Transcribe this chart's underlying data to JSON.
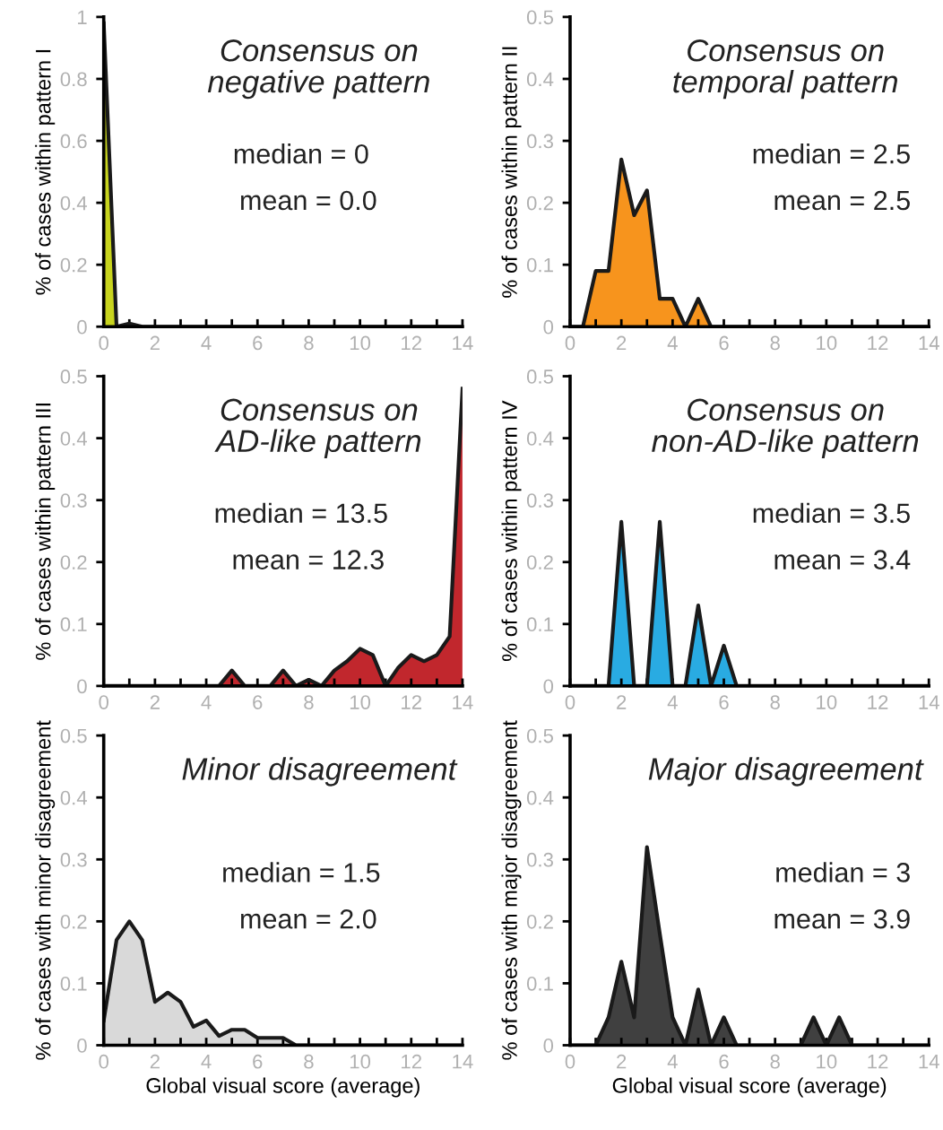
{
  "chart_data": [
    {
      "type": "area",
      "title": "Consensus on\nnegative pattern",
      "ylabel": "% of cases within pattern I",
      "annotations": [
        "median = 0",
        "mean = 0.0"
      ],
      "x": [
        0,
        0.5,
        1,
        1.5,
        2,
        2.5,
        3,
        3.5,
        4,
        4.5,
        5,
        5.5,
        6,
        6.5,
        7,
        7.5,
        8,
        8.5,
        9,
        9.5,
        10,
        10.5,
        11,
        11.5,
        12,
        12.5,
        13,
        13.5,
        14
      ],
      "series": [
        {
          "color": "#c8d41e",
          "values": [
            0.98,
            0,
            0.01,
            0,
            0,
            0,
            0,
            0,
            0,
            0,
            0,
            0,
            0,
            0,
            0,
            0,
            0,
            0,
            0,
            0,
            0,
            0,
            0,
            0,
            0,
            0,
            0,
            0,
            0
          ]
        }
      ],
      "xlim": [
        0,
        14
      ],
      "ylim": [
        0,
        1
      ],
      "xticks": [
        0,
        {
          "value": 1,
          "label": null
        },
        2,
        {
          "value": 3,
          "label": null
        },
        4,
        {
          "value": 5,
          "label": null
        },
        6,
        {
          "value": 7,
          "label": null
        },
        8,
        {
          "value": 9,
          "label": null
        },
        10,
        {
          "value": 11,
          "label": null
        },
        12,
        {
          "value": 13,
          "label": null
        },
        14
      ],
      "yticks": [
        0,
        0.2,
        0.4,
        0.6,
        0.8,
        1
      ]
    },
    {
      "type": "area",
      "title": "Consensus on\ntemporal pattern",
      "ylabel": "% of cases within pattern II",
      "annotations": [
        "median = 2.5",
        "mean = 2.5"
      ],
      "x": [
        0,
        0.5,
        1,
        1.5,
        2,
        2.5,
        3,
        3.5,
        4,
        4.5,
        5,
        5.5,
        6,
        6.5,
        7,
        7.5,
        8,
        8.5,
        9,
        9.5,
        10,
        10.5,
        11,
        11.5,
        12,
        12.5,
        13,
        13.5,
        14
      ],
      "series": [
        {
          "color": "#f7941d",
          "values": [
            0,
            0,
            0.09,
            0.09,
            0.27,
            0.18,
            0.22,
            0.045,
            0.045,
            0,
            0.045,
            0,
            0,
            0,
            0,
            0,
            0,
            0,
            0,
            0,
            0,
            0,
            0,
            0,
            0,
            0,
            0,
            0,
            0
          ]
        }
      ],
      "xlim": [
        0,
        14
      ],
      "ylim": [
        0,
        0.5
      ],
      "xticks": [
        0,
        {
          "value": 1,
          "label": null
        },
        2,
        {
          "value": 3,
          "label": null
        },
        4,
        {
          "value": 5,
          "label": null
        },
        6,
        {
          "value": 7,
          "label": null
        },
        8,
        {
          "value": 9,
          "label": null
        },
        10,
        {
          "value": 11,
          "label": null
        },
        12,
        {
          "value": 13,
          "label": null
        },
        14
      ],
      "yticks": [
        0,
        0.1,
        0.2,
        0.3,
        0.4,
        0.5
      ]
    },
    {
      "type": "area",
      "title": "Consensus on\nAD-like pattern",
      "ylabel": "% of cases within pattern III",
      "annotations": [
        "median = 13.5",
        "mean = 12.3"
      ],
      "x": [
        0,
        0.5,
        1,
        1.5,
        2,
        2.5,
        3,
        3.5,
        4,
        4.5,
        5,
        5.5,
        6,
        6.5,
        7,
        7.5,
        8,
        8.5,
        9,
        9.5,
        10,
        10.5,
        11,
        11.5,
        12,
        12.5,
        13,
        13.5,
        14
      ],
      "series": [
        {
          "color": "#c1272d",
          "values": [
            0,
            0,
            0,
            0,
            0,
            0,
            0,
            0,
            0,
            0,
            0.025,
            0,
            0,
            0,
            0.025,
            0,
            0.01,
            0,
            0.025,
            0.04,
            0.06,
            0.05,
            0,
            0.03,
            0.05,
            0.04,
            0.05,
            0.08,
            0.48
          ]
        }
      ],
      "xlim": [
        0,
        14
      ],
      "ylim": [
        0,
        0.5
      ],
      "xticks": [
        0,
        {
          "value": 1,
          "label": null
        },
        2,
        {
          "value": 3,
          "label": null
        },
        4,
        {
          "value": 5,
          "label": null
        },
        6,
        {
          "value": 7,
          "label": null
        },
        8,
        {
          "value": 9,
          "label": null
        },
        10,
        {
          "value": 11,
          "label": null
        },
        12,
        {
          "value": 13,
          "label": null
        },
        14
      ],
      "yticks": [
        0,
        0.1,
        0.2,
        0.3,
        0.4,
        0.5
      ]
    },
    {
      "type": "area",
      "title": "Consensus on\nnon-AD-like pattern",
      "ylabel": "% of cases within pattern IV",
      "annotations": [
        "median = 3.5",
        "mean = 3.4"
      ],
      "x": [
        0,
        0.5,
        1,
        1.5,
        2,
        2.5,
        3,
        3.5,
        4,
        4.5,
        5,
        5.5,
        6,
        6.5,
        7,
        7.5,
        8,
        8.5,
        9,
        9.5,
        10,
        10.5,
        11,
        11.5,
        12,
        12.5,
        13,
        13.5,
        14
      ],
      "series": [
        {
          "color": "#29abe2",
          "values": [
            0,
            0,
            0,
            0,
            0.265,
            0,
            0,
            0.265,
            0,
            0,
            0.13,
            0,
            0.065,
            0,
            0,
            0,
            0,
            0,
            0,
            0,
            0,
            0,
            0,
            0,
            0,
            0,
            0,
            0,
            0
          ]
        }
      ],
      "xlim": [
        0,
        14
      ],
      "ylim": [
        0,
        0.5
      ],
      "xticks": [
        0,
        {
          "value": 1,
          "label": null
        },
        2,
        {
          "value": 3,
          "label": null
        },
        4,
        {
          "value": 5,
          "label": null
        },
        6,
        {
          "value": 7,
          "label": null
        },
        8,
        {
          "value": 9,
          "label": null
        },
        10,
        {
          "value": 11,
          "label": null
        },
        12,
        {
          "value": 13,
          "label": null
        },
        14
      ],
      "yticks": [
        0,
        0.1,
        0.2,
        0.3,
        0.4,
        0.5
      ]
    },
    {
      "type": "area",
      "title": "Minor disagreement",
      "xlabel": "Global visual score (average)",
      "ylabel": "% of cases with minor disagreement",
      "annotations": [
        "median = 1.5",
        "mean = 2.0"
      ],
      "x": [
        0,
        0.5,
        1,
        1.5,
        2,
        2.5,
        3,
        3.5,
        4,
        4.5,
        5,
        5.5,
        6,
        6.5,
        7,
        7.5,
        8,
        8.5,
        9,
        9.5,
        10,
        10.5,
        11,
        11.5,
        12,
        12.5,
        13,
        13.5,
        14
      ],
      "series": [
        {
          "color": "#d9d9d9",
          "values": [
            0.04,
            0.17,
            0.2,
            0.17,
            0.07,
            0.085,
            0.07,
            0.03,
            0.04,
            0.015,
            0.025,
            0.025,
            0.012,
            0.012,
            0.012,
            0,
            0,
            0,
            0,
            0,
            0,
            0,
            0,
            0,
            0,
            0,
            0,
            0,
            0
          ]
        }
      ],
      "xlim": [
        0,
        14
      ],
      "ylim": [
        0,
        0.5
      ],
      "xticks": [
        0,
        {
          "value": 1,
          "label": null
        },
        2,
        {
          "value": 3,
          "label": null
        },
        4,
        {
          "value": 5,
          "label": null
        },
        6,
        {
          "value": 7,
          "label": null
        },
        8,
        {
          "value": 9,
          "label": null
        },
        10,
        {
          "value": 11,
          "label": null
        },
        12,
        {
          "value": 13,
          "label": null
        },
        14
      ],
      "yticks": [
        0,
        0.1,
        0.2,
        0.3,
        0.4,
        0.5
      ]
    },
    {
      "type": "area",
      "title": "Major disagreement",
      "xlabel": "Global visual score (average)",
      "ylabel": "% of cases with major disagreement",
      "annotations": [
        "median = 3",
        "mean = 3.9"
      ],
      "x": [
        0,
        0.5,
        1,
        1.5,
        2,
        2.5,
        3,
        3.5,
        4,
        4.5,
        5,
        5.5,
        6,
        6.5,
        7,
        7.5,
        8,
        8.5,
        9,
        9.5,
        10,
        10.5,
        11,
        11.5,
        12,
        12.5,
        13,
        13.5,
        14
      ],
      "series": [
        {
          "color": "#404040",
          "values": [
            0,
            0,
            0,
            0.045,
            0.135,
            0.045,
            0.32,
            0.18,
            0.045,
            0,
            0.09,
            0,
            0.045,
            0,
            0,
            0,
            0,
            0,
            0,
            0.045,
            0,
            0.045,
            0,
            0,
            0,
            0,
            0,
            0,
            0
          ]
        }
      ],
      "xlim": [
        0,
        14
      ],
      "ylim": [
        0,
        0.5
      ],
      "xticks": [
        0,
        {
          "value": 1,
          "label": null
        },
        2,
        {
          "value": 3,
          "label": null
        },
        4,
        {
          "value": 5,
          "label": null
        },
        6,
        {
          "value": 7,
          "label": null
        },
        8,
        {
          "value": 9,
          "label": null
        },
        10,
        {
          "value": 11,
          "label": null
        },
        12,
        {
          "value": 13,
          "label": null
        },
        14
      ],
      "yticks": [
        0,
        0.1,
        0.2,
        0.3,
        0.4,
        0.5
      ]
    }
  ]
}
